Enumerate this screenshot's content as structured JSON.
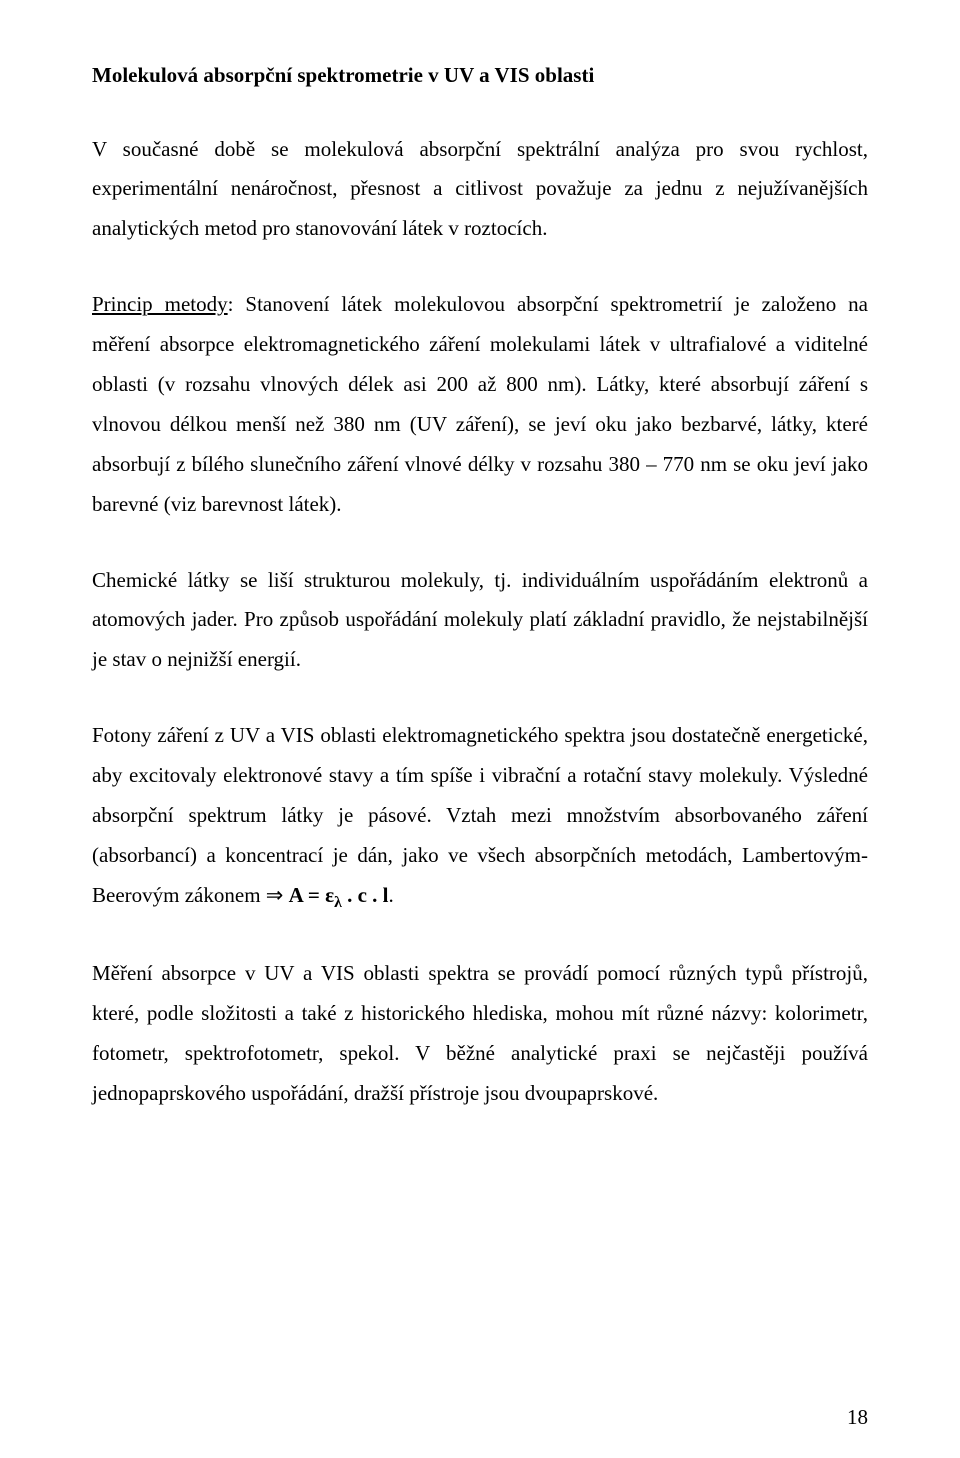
{
  "title": "Molekulová absorpční spektrometrie v UV a VIS oblasti",
  "para1": "V současné době se molekulová absorpční spektrální analýza pro svou rychlost, experimentální nenáročnost, přesnost a citlivost považuje za jednu z nejužívanějších analytických metod pro stanovování látek v roztocích.",
  "para2_lead": "Princip metody",
  "para2_rest": ": Stanovení látek molekulovou absorpční spektrometrií je založeno na měření absorpce elektromagnetického záření molekulami látek v ultrafialové a viditelné oblasti (v rozsahu vlnových délek asi 200 až 800 nm). Látky, které absorbují záření s vlnovou délkou menší než 380 nm (UV záření), se jeví oku jako bezbarvé, látky, které absorbují z bílého slunečního záření vlnové délky v rozsahu 380 – 770 nm se oku jeví jako barevné (viz barevnost látek).",
  "para3": "Chemické látky se liší strukturou molekuly, tj. individuálním uspořádáním elektronů a atomových jader. Pro způsob uspořádání molekuly platí základní pravidlo, že nejstabilnější je stav o nejnižší energií.",
  "para4_a": "Fotony záření z UV a VIS oblasti elektromagnetického spektra jsou dostatečně energetické, aby excitovaly elektronové stavy a tím spíše i vibrační a rotační stavy molekuly. Výsledné absorpční spektrum látky je pásové. Vztah mezi množstvím absorbovaného záření (absorbancí) a koncentrací je dán, jako ve všech absorpčních metodách, Lambertovým-Beerovým zákonem ⇒ ",
  "formula_A": "A = ε",
  "formula_sub": "λ",
  "formula_rest": " . c . l",
  "para4_tail": ".",
  "para5": "Měření absorpce v UV a VIS oblasti spektra se provádí pomocí různých typů přístrojů, které, podle složitosti a také z historického hlediska, mohou mít různé názvy: kolorimetr, fotometr, spektrofotometr, spekol. V běžné analytické praxi se nejčastěji používá jednopaprskového uspořádání, dražší přístroje jsou dvoupaprskové.",
  "page_number": "18"
}
